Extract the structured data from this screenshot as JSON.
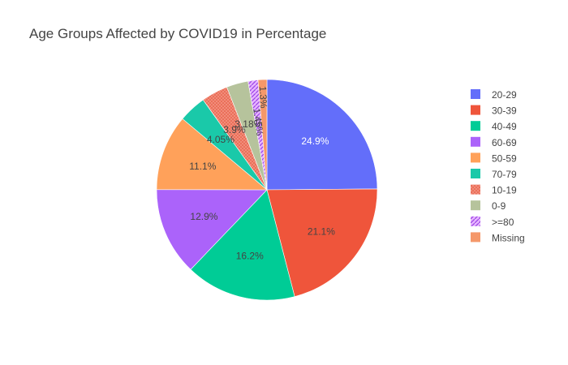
{
  "chart_data": {
    "type": "pie",
    "title": "Age Groups Affected by COVID19 in Percentage",
    "labels": [
      "20-29",
      "30-39",
      "40-49",
      "60-69",
      "50-59",
      "70-79",
      "10-19",
      "0-9",
      ">=80",
      "Missing"
    ],
    "values": [
      24.9,
      21.1,
      16.2,
      12.9,
      11.1,
      4.05,
      3.9,
      3.18,
      1.45,
      1.3
    ],
    "value_labels": [
      "24.9%",
      "21.1%",
      "16.2%",
      "12.9%",
      "11.1%",
      "4.05%",
      "3.9%",
      "3.18%",
      "1.45%",
      "1.3%"
    ],
    "colors": [
      "#636efa",
      "#EF553B",
      "#00cc96",
      "#ab63fa",
      "#FFA15A",
      "#19d3f3",
      "#FF6692",
      "#B6E880",
      "#FF97FF",
      "#FECB52"
    ],
    "legend_position": "right",
    "direction": "clockwise",
    "start_angle": "top"
  }
}
